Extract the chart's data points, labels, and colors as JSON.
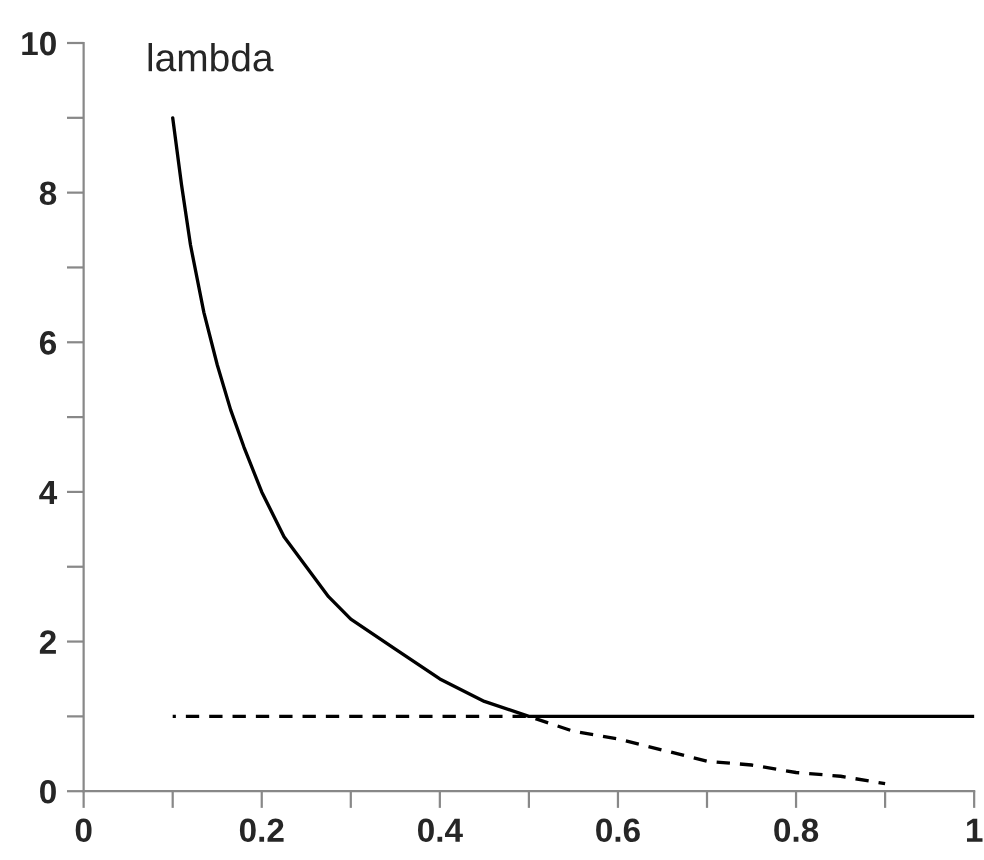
{
  "chart_data": {
    "type": "line",
    "ylabel": "lambda",
    "series": [
      {
        "color": "#000000",
        "line_style": "solid",
        "x": [
          0.1,
          0.11,
          0.12,
          0.135,
          0.15,
          0.165,
          0.18,
          0.2,
          0.225,
          0.25,
          0.275,
          0.3,
          0.35,
          0.4,
          0.45,
          0.5,
          1
        ],
        "values": [
          9,
          8.1,
          7.3,
          6.4,
          5.7,
          5.1,
          4.6,
          4,
          3.4,
          3,
          2.6,
          2.3,
          1.9,
          1.5,
          1.2,
          1,
          1
        ]
      },
      {
        "color": "#000000",
        "line_style": "dashed",
        "x": [
          0.1,
          0.5,
          0.55,
          0.6,
          0.65,
          0.7,
          0.75,
          0.8,
          0.85,
          0.9
        ],
        "values": [
          1,
          1,
          0.8,
          0.7,
          0.55,
          0.4,
          0.35,
          0.25,
          0.2,
          0.1
        ]
      }
    ],
    "xlim": [
      0,
      1
    ],
    "ylim": [
      0,
      10
    ],
    "xticks": [
      0,
      {
        "value": 0.1,
        "label": null
      },
      0.2,
      {
        "value": 0.3,
        "label": null
      },
      0.4,
      {
        "value": 0.5,
        "label": null
      },
      0.6,
      {
        "value": 0.7,
        "label": null
      },
      0.8,
      {
        "value": 0.9,
        "label": null
      },
      1
    ],
    "yticks": [
      0,
      {
        "value": 1,
        "label": null
      },
      2,
      {
        "value": 3,
        "label": null
      },
      4,
      {
        "value": 5,
        "label": null
      },
      6,
      {
        "value": 7,
        "label": null
      },
      8,
      {
        "value": 9,
        "label": null
      },
      10
    ],
    "grid": false,
    "legend": false,
    "marker": "none"
  }
}
